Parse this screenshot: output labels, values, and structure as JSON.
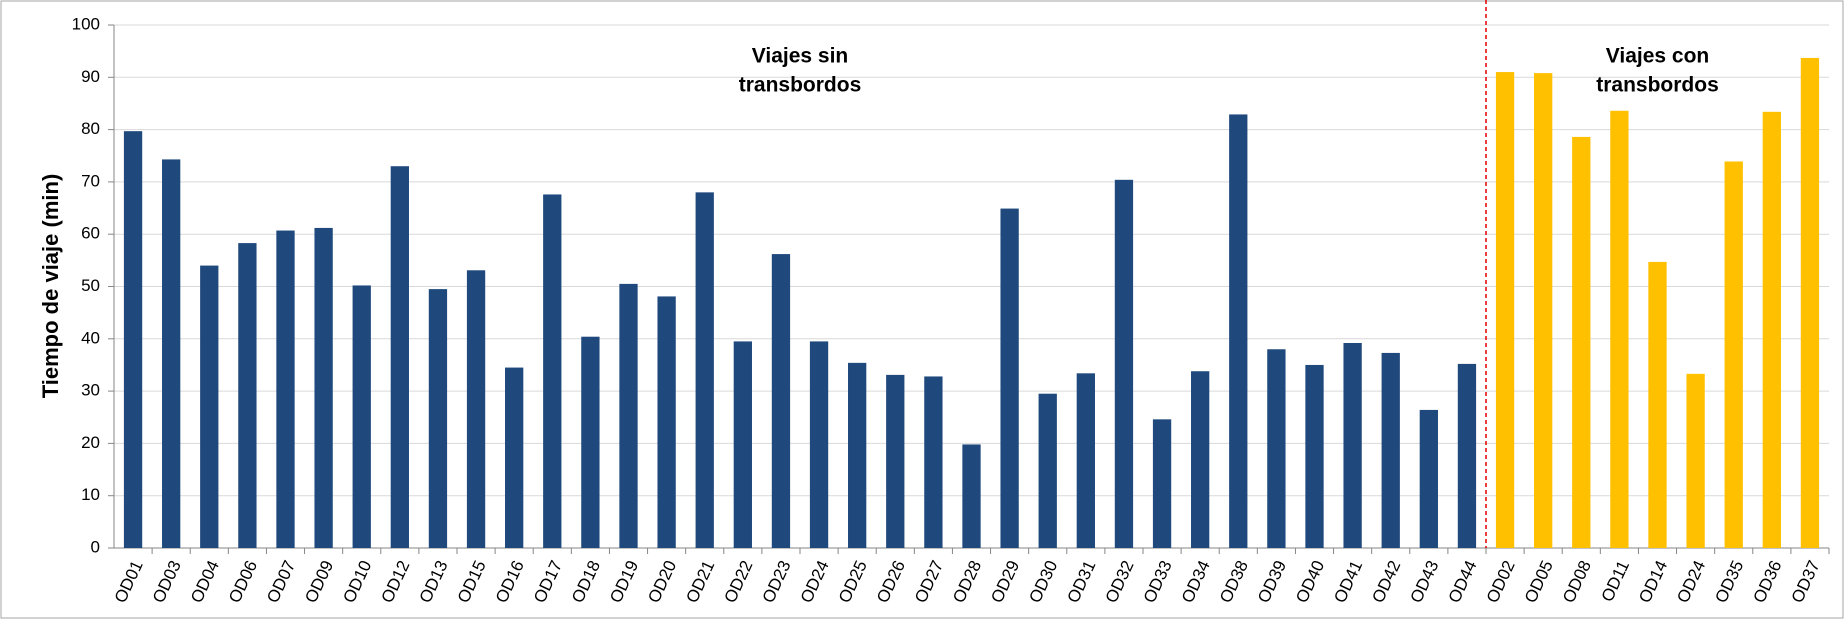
{
  "chart_data": {
    "type": "bar",
    "y_label": "Tiempo de viaje (min)",
    "annotations": [
      {
        "lines": [
          "Viajes sin",
          "transbordos"
        ]
      },
      {
        "lines": [
          "Viajes con",
          "transbordos"
        ]
      }
    ],
    "categories": [
      "OD01",
      "OD03",
      "OD04",
      "OD06",
      "OD07",
      "OD09",
      "OD10",
      "OD12",
      "OD13",
      "OD15",
      "OD16",
      "OD17",
      "OD18",
      "OD19",
      "OD20",
      "OD21",
      "OD22",
      "OD23",
      "OD24",
      "OD25",
      "OD26",
      "OD27",
      "OD28",
      "OD29",
      "OD30",
      "OD31",
      "OD32",
      "OD33",
      "OD34",
      "OD38",
      "OD39",
      "OD40",
      "OD41",
      "OD42",
      "OD43",
      "OD44",
      "OD02",
      "OD05",
      "OD08",
      "OD11",
      "OD14",
      "OD24",
      "OD35",
      "OD36",
      "OD37"
    ],
    "series": [
      {
        "color": "#1f497d",
        "values": [
          79.7,
          74.3,
          54,
          58.3,
          60.7,
          61.2,
          50.2,
          73,
          49.5,
          53.1,
          34.5,
          67.6,
          40.4,
          50.5,
          48.1,
          68,
          39.5,
          56.2,
          39.5,
          35.4,
          33.1,
          32.8,
          19.8,
          64.9,
          29.5,
          33.4,
          70.4,
          24.6,
          33.8,
          82.9,
          38,
          35,
          39.2,
          37.3,
          26.4,
          35.2,
          null,
          null,
          null,
          null,
          null,
          null,
          null,
          null,
          null
        ]
      },
      {
        "color": "#ffc000",
        "values": [
          null,
          null,
          null,
          null,
          null,
          null,
          null,
          null,
          null,
          null,
          null,
          null,
          null,
          null,
          null,
          null,
          null,
          null,
          null,
          null,
          null,
          null,
          null,
          null,
          null,
          null,
          null,
          null,
          null,
          null,
          null,
          null,
          null,
          null,
          null,
          null,
          91,
          90.8,
          78.6,
          83.6,
          54.7,
          33.3,
          73.9,
          83.4,
          93.7
        ]
      }
    ],
    "ylim": [
      0,
      100
    ],
    "yticks": [
      0,
      10,
      20,
      30,
      40,
      50,
      60,
      70,
      80,
      90,
      100
    ],
    "grid": true
  }
}
